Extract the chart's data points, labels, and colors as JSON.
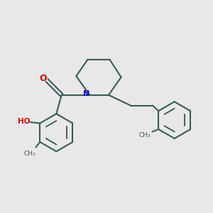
{
  "bg_color": "#e8e8e8",
  "bond_color": "#3a5a5a",
  "o_color": "#dd0000",
  "n_color": "#0000cc",
  "line_width": 1.5,
  "fig_size": [
    3.0,
    3.0
  ],
  "dpi": 100,
  "xlim": [
    0,
    10
  ],
  "ylim": [
    0,
    10
  ]
}
